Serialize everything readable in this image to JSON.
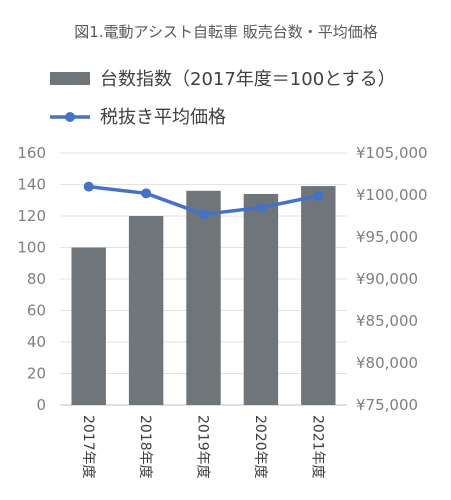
{
  "chart_data": {
    "type": "bar",
    "title": "図1.電動アシスト自転車 販売台数・平均価格",
    "categories": [
      "2017年度",
      "2018年度",
      "2019年度",
      "2020年度",
      "2021年度"
    ],
    "series": [
      {
        "name": "台数指数（2017年度＝100とする）",
        "type": "bar",
        "axis": "left",
        "color": "#6f7579",
        "values": [
          100,
          120,
          136,
          134,
          139
        ]
      },
      {
        "name": "税抜き平均価格",
        "type": "line",
        "axis": "right",
        "color": "#4472c4",
        "values": [
          101000,
          100200,
          97700,
          98500,
          99900
        ]
      }
    ],
    "y_left": {
      "min": 0,
      "max": 160,
      "ticks": [
        "0",
        "20",
        "40",
        "60",
        "80",
        "100",
        "120",
        "140",
        "160"
      ]
    },
    "y_right": {
      "min": 75000,
      "max": 105000,
      "ticks": [
        "¥75,000",
        "¥80,000",
        "¥85,000",
        "¥90,000",
        "¥95,000",
        "¥100,000",
        "¥105,000"
      ]
    },
    "grid": true,
    "legend": "top"
  }
}
